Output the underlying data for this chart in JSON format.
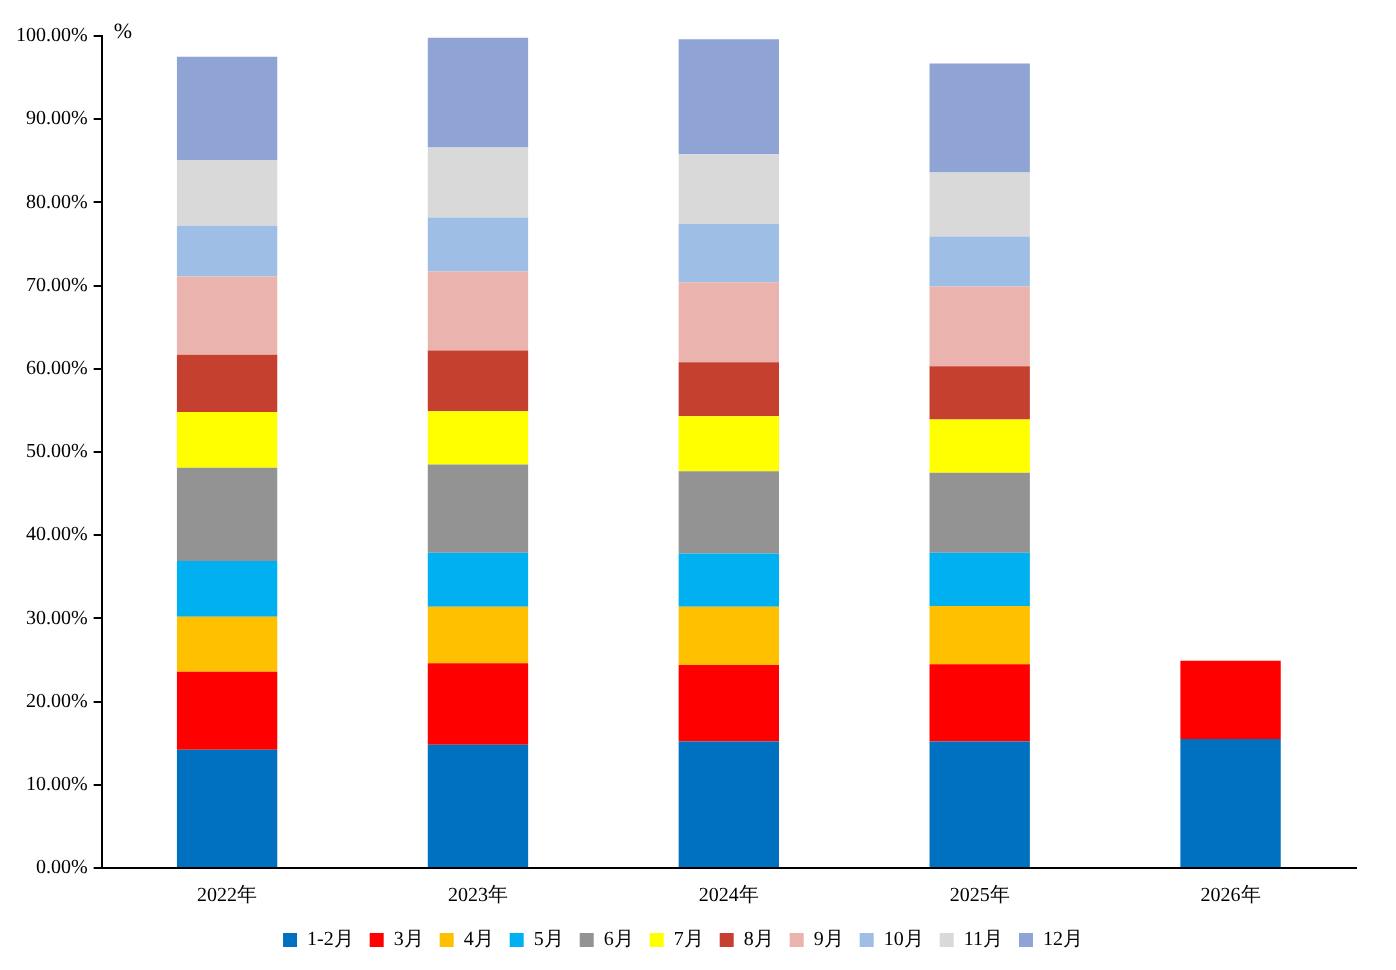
{
  "chart_data": {
    "type": "bar",
    "stacked": true,
    "ylabel": "%",
    "categories": [
      "2022年",
      "2023年",
      "2024年",
      "2025年",
      "2026年"
    ],
    "ylim": [
      0,
      100
    ],
    "yticks": [
      {
        "value": 0,
        "label": "0.00%"
      },
      {
        "value": 10,
        "label": "10.00%"
      },
      {
        "value": 20,
        "label": "20.00%"
      },
      {
        "value": 30,
        "label": "30.00%"
      },
      {
        "value": 40,
        "label": "40.00%"
      },
      {
        "value": 50,
        "label": "50.00%"
      },
      {
        "value": 60,
        "label": "60.00%"
      },
      {
        "value": 70,
        "label": "70.00%"
      },
      {
        "value": 80,
        "label": "80.00%"
      },
      {
        "value": 90,
        "label": "90.00%"
      },
      {
        "value": 100,
        "label": "100.00%"
      }
    ],
    "grid": false,
    "legend": "bottom",
    "series": [
      {
        "name": "1-2月",
        "color": "#0070c0",
        "values": [
          14.2,
          14.8,
          15.2,
          15.2,
          15.5
        ]
      },
      {
        "name": "3月",
        "color": "#ff0000",
        "values": [
          9.4,
          9.8,
          9.2,
          9.3,
          9.4
        ]
      },
      {
        "name": "4月",
        "color": "#ffc000",
        "values": [
          6.6,
          6.8,
          7.0,
          7.0,
          null
        ]
      },
      {
        "name": "5月",
        "color": "#00b0f0",
        "values": [
          6.7,
          6.5,
          6.4,
          6.4,
          null
        ]
      },
      {
        "name": "6月",
        "color": "#939393",
        "values": [
          11.2,
          10.6,
          9.9,
          9.6,
          null
        ]
      },
      {
        "name": "7月",
        "color": "#ffff00",
        "values": [
          6.7,
          6.4,
          6.6,
          6.4,
          null
        ]
      },
      {
        "name": "8月",
        "color": "#c6402f",
        "values": [
          6.9,
          7.3,
          6.5,
          6.4,
          null
        ]
      },
      {
        "name": "9月",
        "color": "#ebb3ad",
        "values": [
          9.4,
          9.5,
          9.6,
          9.6,
          null
        ]
      },
      {
        "name": "10月",
        "color": "#9ebee6",
        "values": [
          6.1,
          6.5,
          7.0,
          6.0,
          null
        ]
      },
      {
        "name": "11月",
        "color": "#d9d9d9",
        "values": [
          7.9,
          8.4,
          8.4,
          7.7,
          null
        ]
      },
      {
        "name": "12月",
        "color": "#8fa4d4",
        "values": [
          12.4,
          13.2,
          13.8,
          13.1,
          null
        ]
      }
    ]
  }
}
